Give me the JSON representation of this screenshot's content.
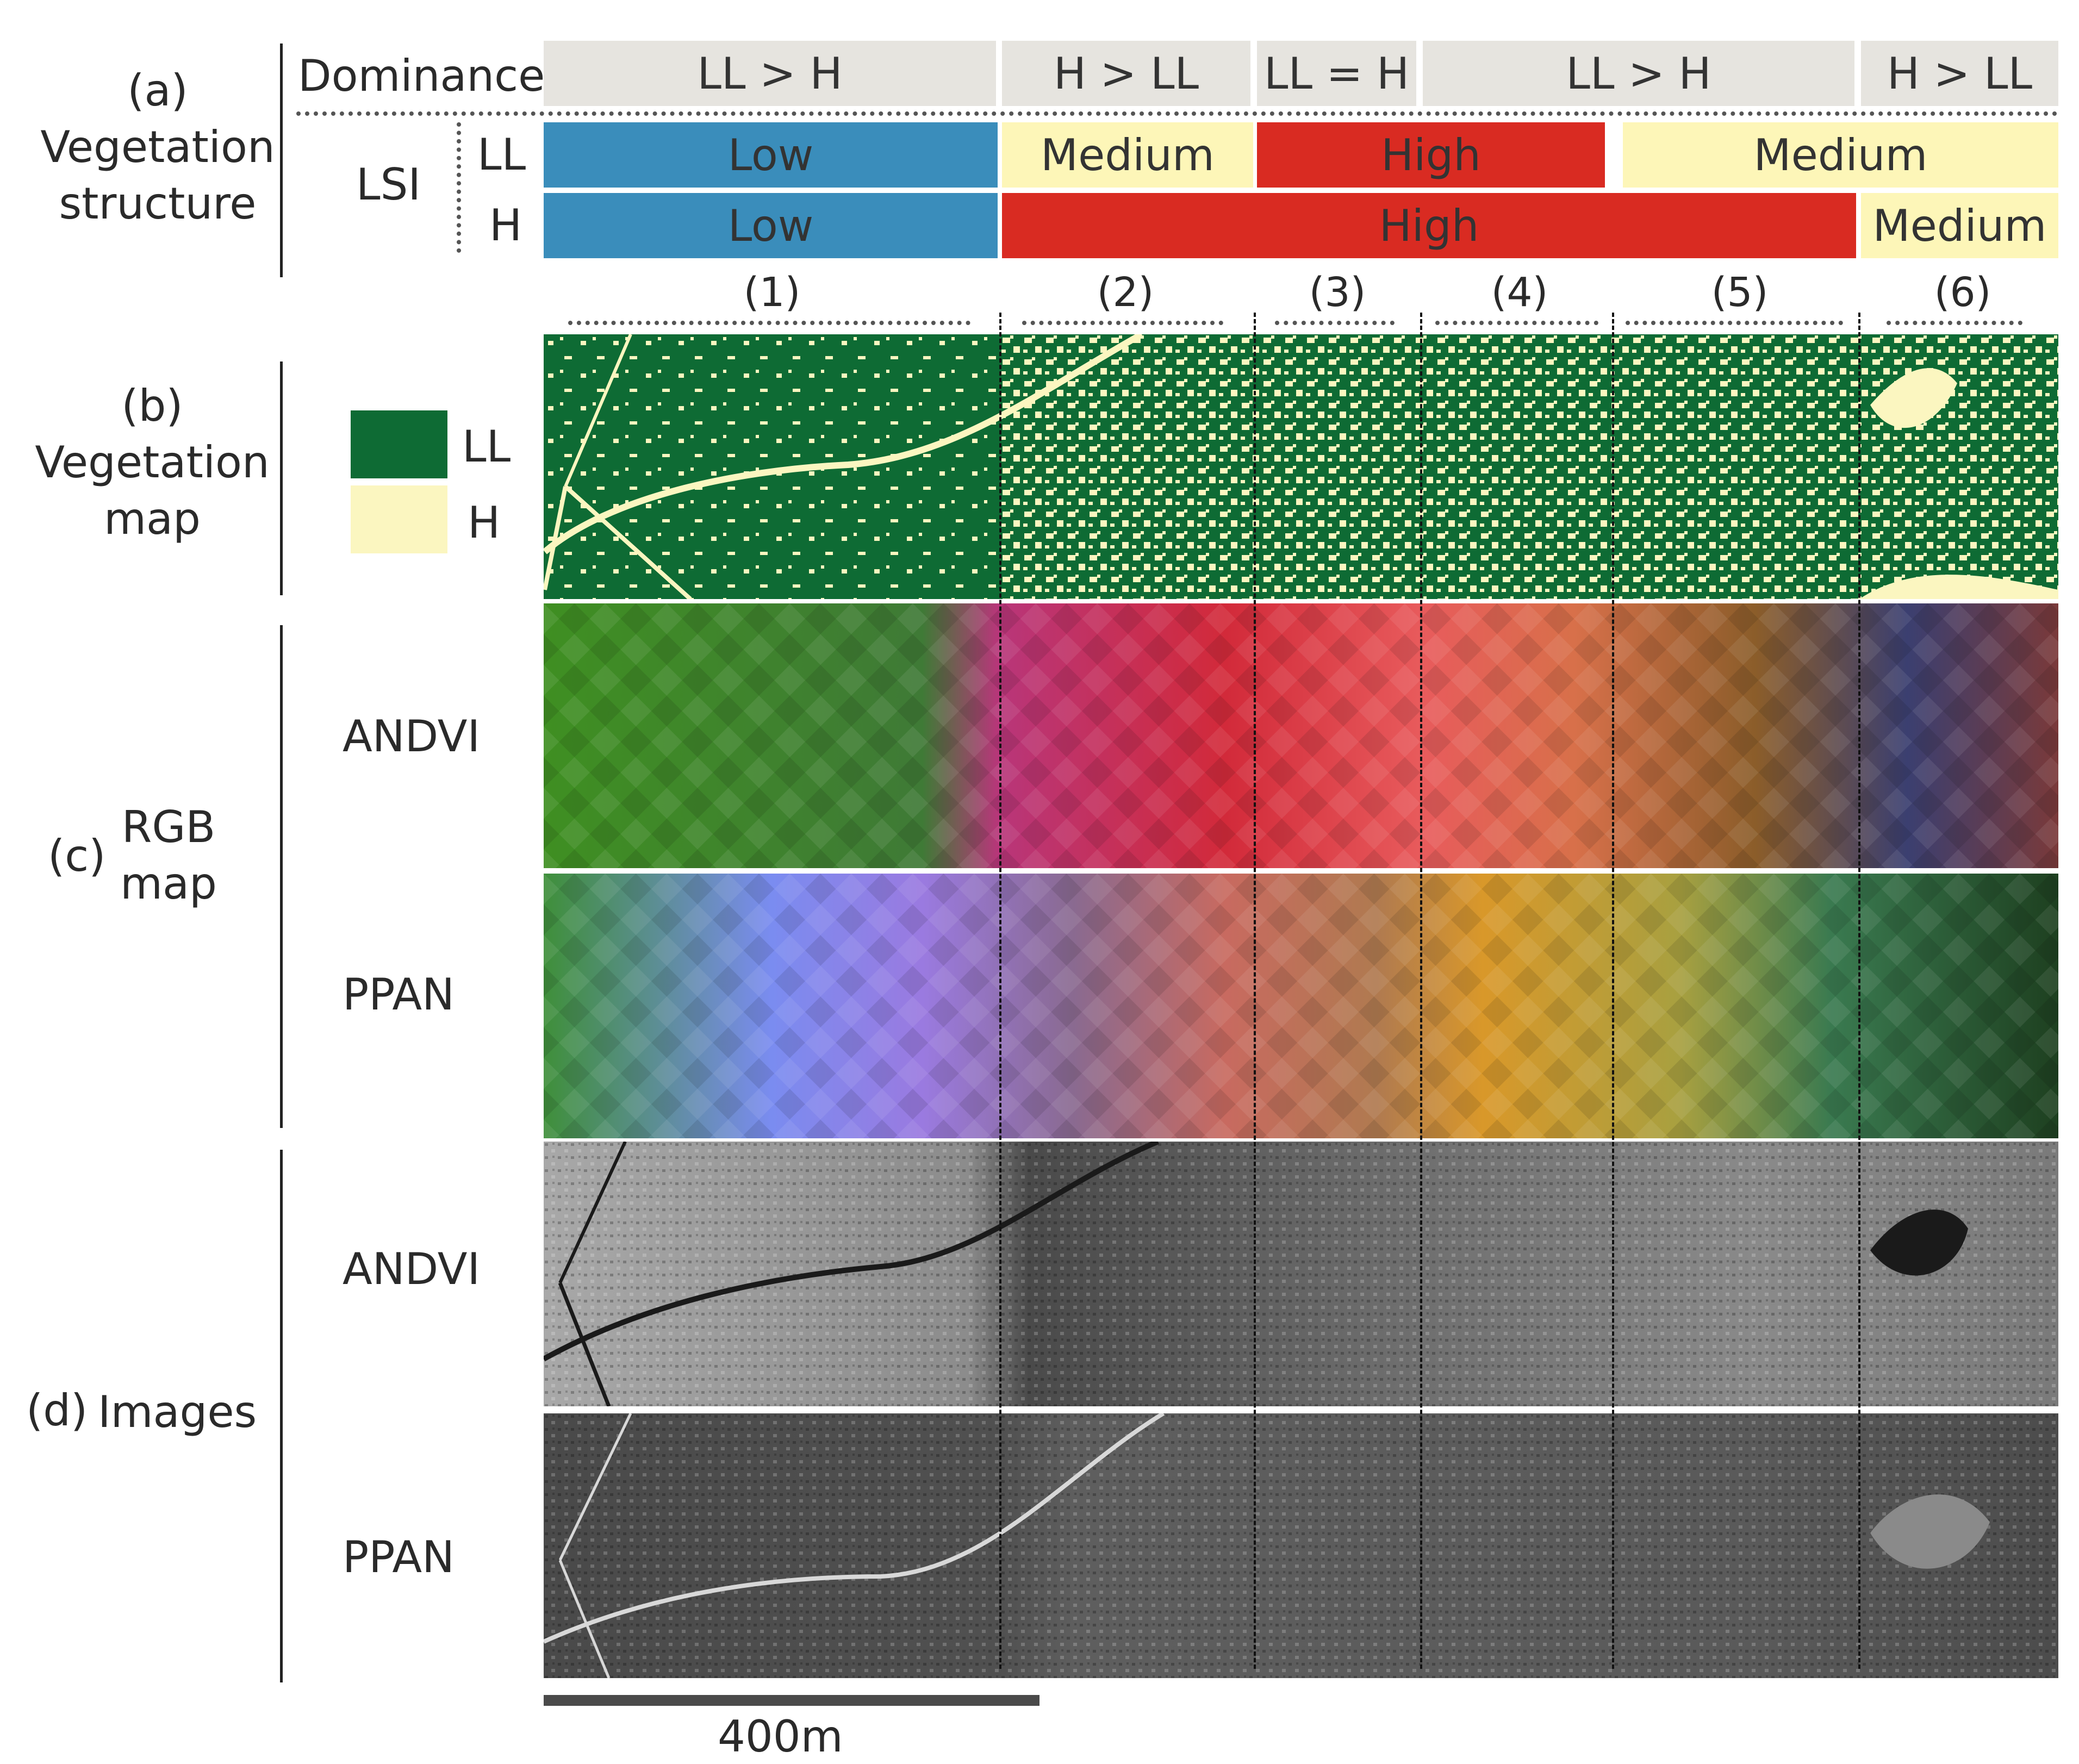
{
  "section_labels": {
    "a": [
      "(a)",
      "Vegetation",
      "structure"
    ],
    "b": [
      "(b)",
      "Vegetation",
      "map"
    ],
    "c_prefix": "(c)",
    "c": [
      "RGB",
      "map"
    ],
    "d_prefix": "(d)",
    "d": "Images"
  },
  "vegetation_structure": {
    "dominance_label": "Dominance",
    "lsi_label": "LSI",
    "ll_label": "LL",
    "h_label": "H",
    "dominance": [
      "LL > H",
      "H > LL",
      "LL = H",
      "LL > H",
      "H > LL"
    ],
    "lsi_ll": [
      "Low",
      "Medium",
      "High",
      "Medium"
    ],
    "lsi_h": [
      "Low",
      "High",
      "Medium"
    ]
  },
  "segments": [
    "(1)",
    "(2)",
    "(3)",
    "(4)",
    "(5)",
    "(6)"
  ],
  "legend": {
    "ll_label": "LL",
    "h_label": "H"
  },
  "rgb_rows": [
    "ANDVI",
    "PPAN"
  ],
  "image_rows": [
    "ANDVI",
    "PPAN"
  ],
  "scale_bar": "400m",
  "colors": {
    "dominance_bg": "#e6e4df",
    "low": "#3a8dbb",
    "medium": "#fdf6b8",
    "high": "#d92b22",
    "ll": "#0e6b34",
    "h": "#fbf6c0"
  },
  "icons": {
    "ll_swatch": "ll-swatch-icon",
    "h_swatch": "h-swatch-icon"
  }
}
